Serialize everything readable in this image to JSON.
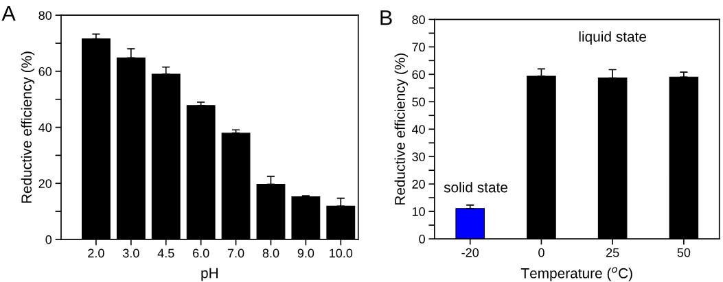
{
  "chart_data": [
    {
      "type": "bar",
      "title": "A",
      "xlabel": "pH",
      "ylabel": "Reductive efficiency (%)",
      "categories": [
        "2.0",
        "3.0",
        "4.5",
        "6.0",
        "7.0",
        "8.0",
        "9.0",
        "10.0"
      ],
      "values": [
        71.6,
        64.8,
        59.0,
        47.8,
        37.9,
        19.7,
        15.2,
        11.9
      ],
      "colors": [
        "#000000",
        "#000000",
        "#000000",
        "#000000",
        "#000000",
        "#000000",
        "#000000",
        "#000000"
      ],
      "errors": [
        [
          71.6,
          73.3
        ],
        [
          64.8,
          68.0
        ],
        [
          59.0,
          61.5
        ],
        [
          47.8,
          49.0
        ],
        [
          37.9,
          39.1
        ],
        [
          19.7,
          22.5
        ],
        [
          15.2,
          15.6
        ],
        [
          11.9,
          14.7
        ]
      ],
      "ylim": [
        0,
        80
      ],
      "yticks": [
        0,
        {
          "value": 10,
          "label": null
        },
        20,
        {
          "value": 30,
          "label": null
        },
        40,
        {
          "value": 50,
          "label": null
        },
        60,
        {
          "value": 70,
          "label": null
        },
        80
      ],
      "grid": false,
      "legend": false
    },
    {
      "type": "bar",
      "title": "B",
      "xlabel": "Temperature ($^{o}$C)",
      "ylabel": "Reductive efficiency (%)",
      "categories": [
        "-20",
        "0",
        "25",
        "50"
      ],
      "values": [
        11.1,
        59.3,
        58.7,
        59.0
      ],
      "colors": [
        "#0000ff",
        "#000000",
        "#000000",
        "#000000"
      ],
      "errors": [
        [
          11.1,
          12.3
        ],
        [
          59.3,
          62.0
        ],
        [
          58.7,
          61.7
        ],
        [
          59.0,
          60.8
        ]
      ],
      "ylim": [
        0,
        80
      ],
      "yticks": [
        0,
        {
          "value": 5,
          "label": null
        },
        10,
        {
          "value": 15,
          "label": null
        },
        20,
        {
          "value": 25,
          "label": null
        },
        30,
        {
          "value": 35,
          "label": null
        },
        40,
        {
          "value": 45,
          "label": null
        },
        50,
        {
          "value": 55,
          "label": null
        },
        60,
        {
          "value": 65,
          "label": null
        },
        70,
        {
          "value": 75,
          "label": null
        },
        80
      ],
      "annotations": [
        "solid state",
        "liquid state"
      ],
      "grid": false,
      "legend": false
    }
  ]
}
